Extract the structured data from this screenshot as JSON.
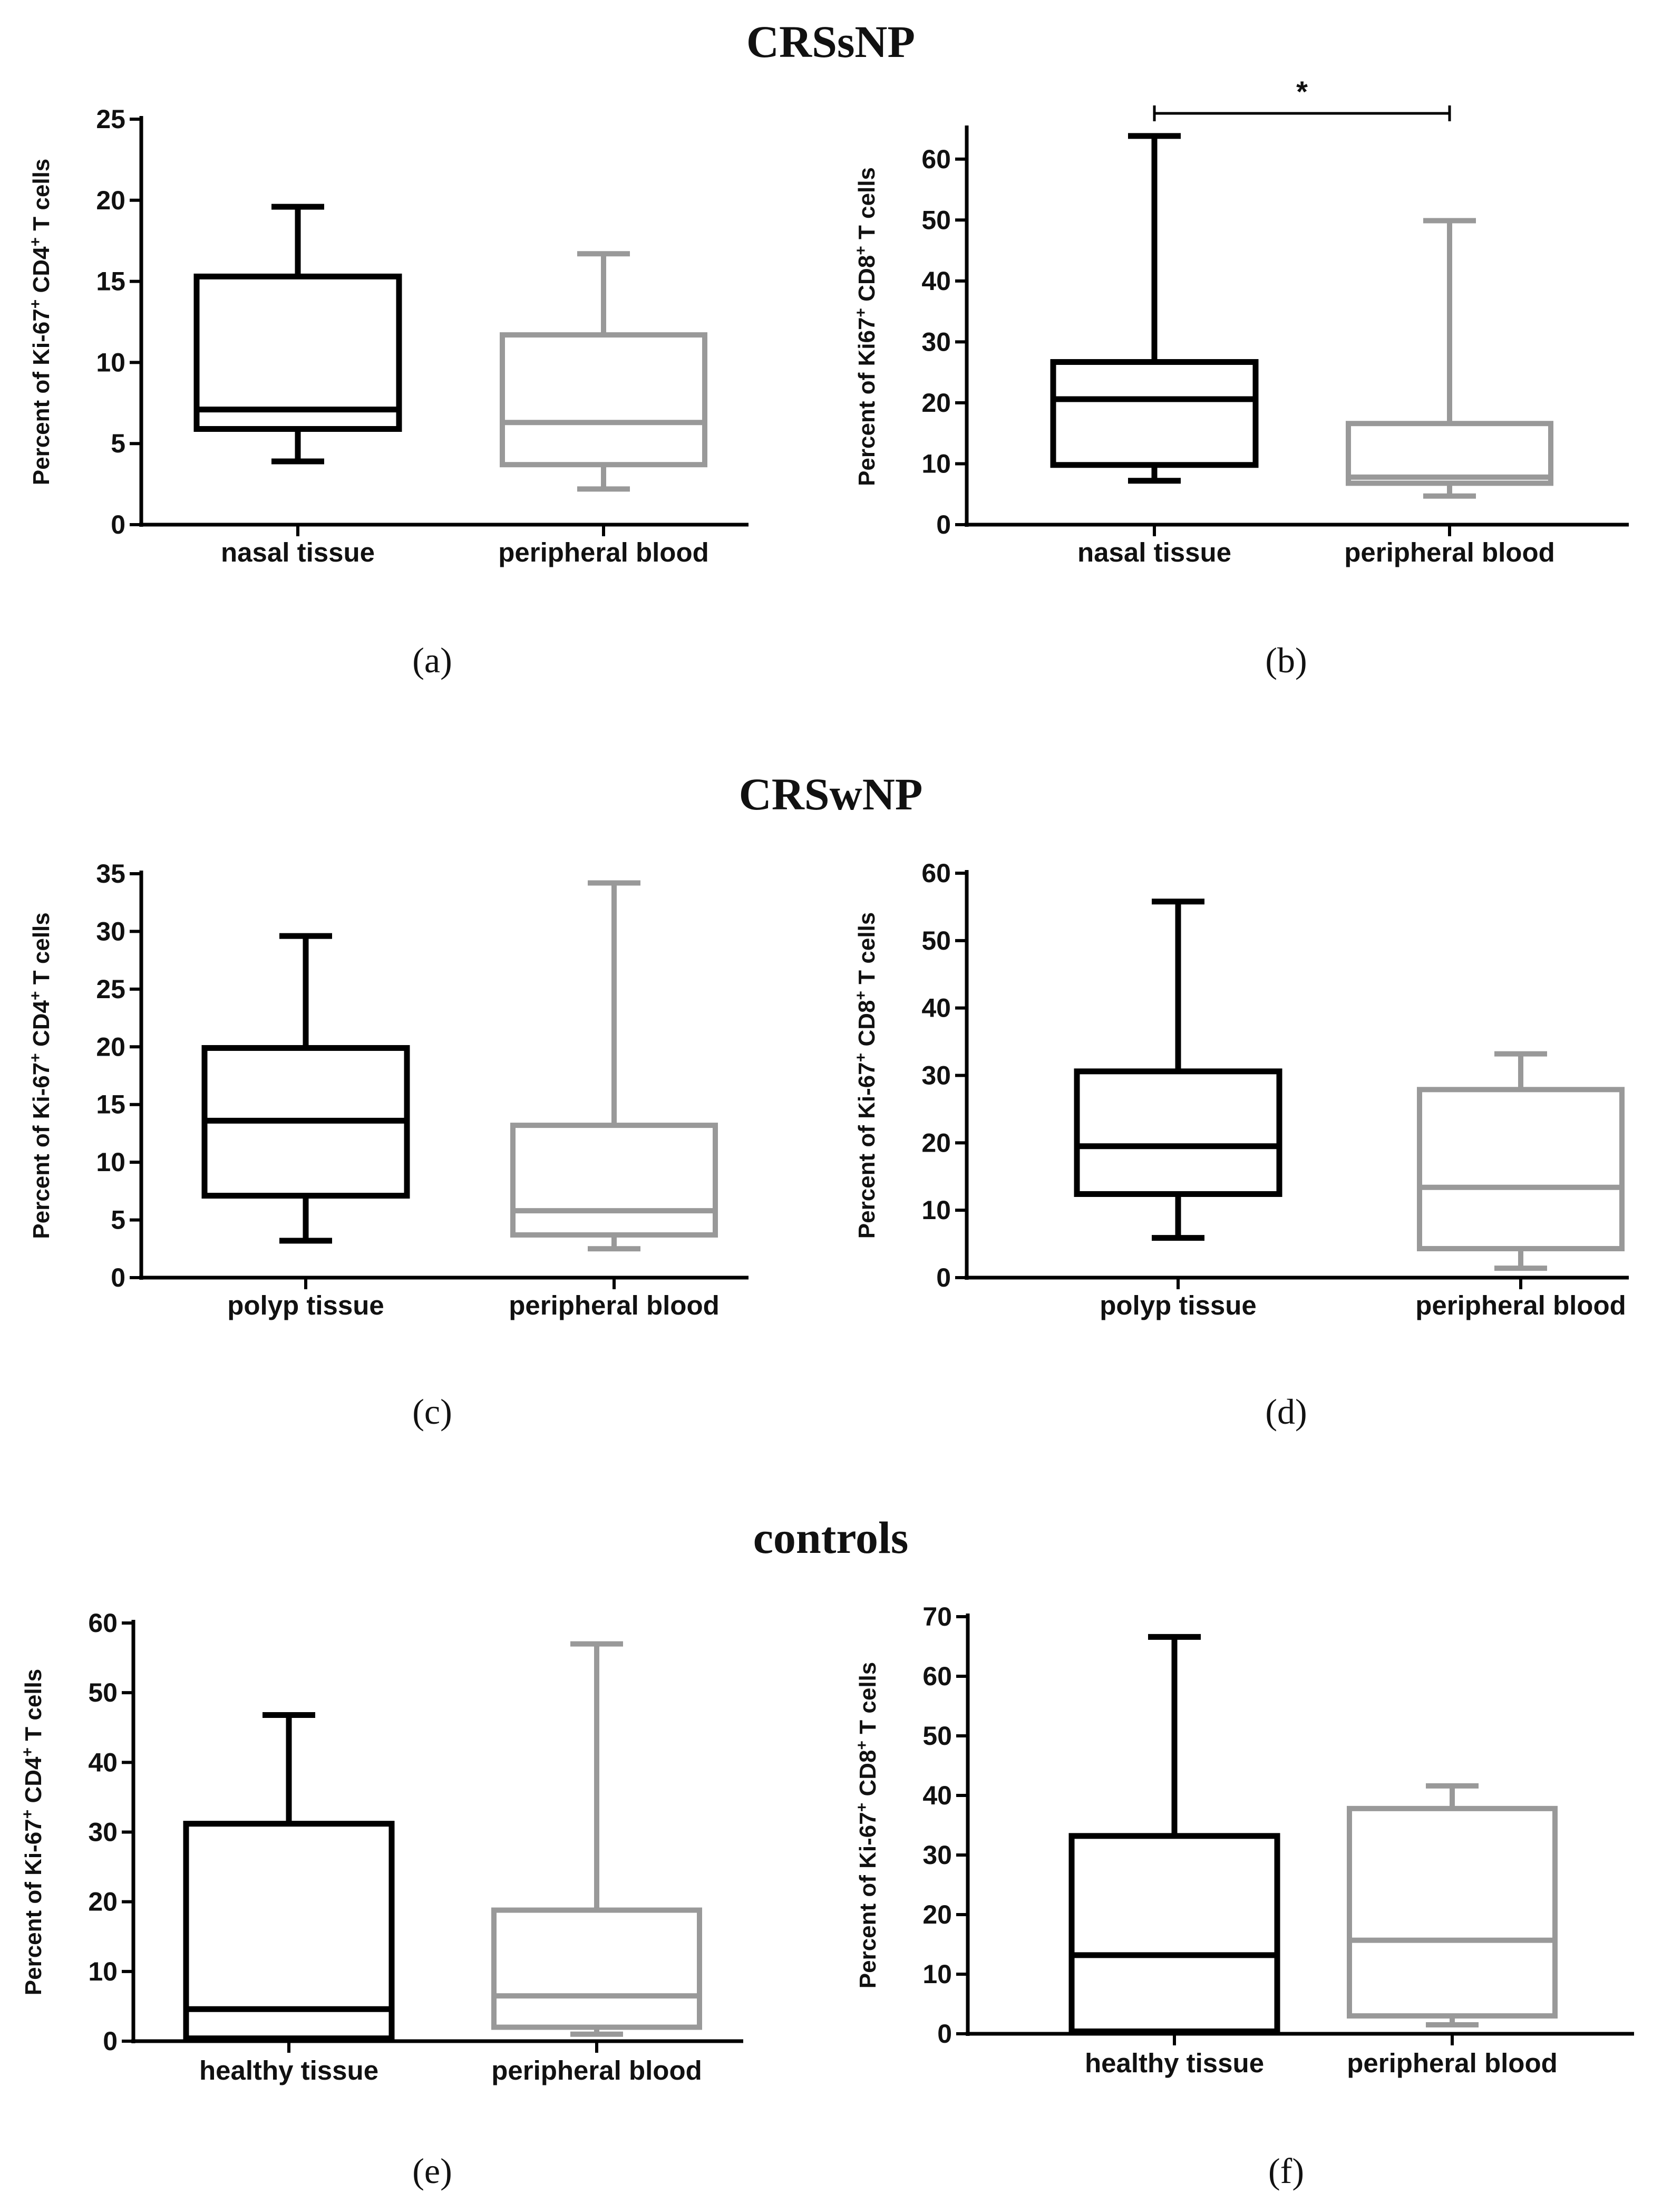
{
  "groups": [
    {
      "title": "CRSsNP"
    },
    {
      "title": "CRSwNP"
    },
    {
      "title": "controls"
    }
  ],
  "chart_data": [
    {
      "type": "box",
      "panel": "(a)",
      "group": "CRSsNP",
      "ylabel": {
        "prefix": "Percent of Ki-67",
        "mid": " CD4",
        "suffix": " T cells"
      },
      "ylim": [
        0,
        25
      ],
      "yticks": [
        0,
        5,
        10,
        15,
        20,
        25
      ],
      "categories": [
        "nasal tissue",
        "peripheral blood"
      ],
      "boxes": [
        {
          "color": "#000000",
          "min": 3.9,
          "q1": 5.9,
          "median": 7.1,
          "q3": 15.3,
          "max": 19.6
        },
        {
          "color": "#999999",
          "min": 2.2,
          "q1": 3.7,
          "median": 6.3,
          "q3": 11.7,
          "max": 16.7
        }
      ],
      "significance": null
    },
    {
      "type": "box",
      "panel": "(b)",
      "group": "CRSsNP",
      "ylabel": {
        "prefix": "Percent of Ki67",
        "mid": " CD8",
        "suffix": " T cells"
      },
      "ylim": [
        0,
        65
      ],
      "yticks": [
        0,
        10,
        20,
        30,
        40,
        50,
        60
      ],
      "categories": [
        "nasal tissue",
        "peripheral blood"
      ],
      "boxes": [
        {
          "color": "#000000",
          "min": 7.2,
          "q1": 9.8,
          "median": 20.6,
          "q3": 26.7,
          "max": 63.8
        },
        {
          "color": "#999999",
          "min": 4.7,
          "q1": 6.8,
          "median": 7.8,
          "q3": 16.6,
          "max": 49.9
        }
      ],
      "significance": {
        "label": "*",
        "from": 0,
        "to": 1
      }
    },
    {
      "type": "box",
      "panel": "(c)",
      "group": "CRSwNP",
      "ylabel": {
        "prefix": "Percent of Ki-67",
        "mid": " CD4",
        "suffix": " T cells"
      },
      "ylim": [
        0,
        35
      ],
      "yticks": [
        0,
        5,
        10,
        15,
        20,
        25,
        30,
        35
      ],
      "categories": [
        "polyp tissue",
        "peripheral blood"
      ],
      "boxes": [
        {
          "color": "#000000",
          "min": 3.2,
          "q1": 7.1,
          "median": 13.6,
          "q3": 19.9,
          "max": 29.6
        },
        {
          "color": "#999999",
          "min": 2.5,
          "q1": 3.7,
          "median": 5.8,
          "q3": 13.2,
          "max": 34.2
        }
      ],
      "significance": null
    },
    {
      "type": "box",
      "panel": "(d)",
      "group": "CRSwNP",
      "ylabel": {
        "prefix": "Percent of Ki-67",
        "mid": " CD8",
        "suffix": " T cells"
      },
      "ylim": [
        0,
        60
      ],
      "yticks": [
        0,
        10,
        20,
        30,
        40,
        50,
        60
      ],
      "categories": [
        "polyp tissue",
        "peripheral blood"
      ],
      "boxes": [
        {
          "color": "#000000",
          "min": 5.9,
          "q1": 12.4,
          "median": 19.5,
          "q3": 30.6,
          "max": 55.8
        },
        {
          "color": "#999999",
          "min": 1.4,
          "q1": 4.3,
          "median": 13.4,
          "q3": 27.9,
          "max": 33.2
        }
      ],
      "significance": null
    },
    {
      "type": "box",
      "panel": "(e)",
      "group": "controls",
      "ylabel": {
        "prefix": "Percent of Ki-67",
        "mid": " CD4",
        "suffix": " T cells"
      },
      "ylim": [
        0,
        60
      ],
      "yticks": [
        0,
        10,
        20,
        30,
        40,
        50,
        60
      ],
      "categories": [
        "healthy tissue",
        "peripheral blood"
      ],
      "boxes": [
        {
          "color": "#000000",
          "min": 0.4,
          "q1": 0.4,
          "median": 4.6,
          "q3": 31.2,
          "max": 46.8
        },
        {
          "color": "#999999",
          "min": 1.0,
          "q1": 2.0,
          "median": 6.5,
          "q3": 18.8,
          "max": 57.0
        }
      ],
      "significance": null
    },
    {
      "type": "box",
      "panel": "(f)",
      "group": "controls",
      "ylabel": {
        "prefix": "Percent of Ki-67",
        "mid": " CD8",
        "suffix": " T cells"
      },
      "ylim": [
        0,
        70
      ],
      "yticks": [
        0,
        10,
        20,
        30,
        40,
        50,
        60,
        70
      ],
      "categories": [
        "healthy tissue",
        "peripheral blood"
      ],
      "boxes": [
        {
          "color": "#000000",
          "min": 0.4,
          "q1": 0.4,
          "median": 13.2,
          "q3": 33.2,
          "max": 66.6
        },
        {
          "color": "#999999",
          "min": 1.5,
          "q1": 3.0,
          "median": 15.7,
          "q3": 37.8,
          "max": 41.6
        }
      ],
      "significance": null
    }
  ]
}
